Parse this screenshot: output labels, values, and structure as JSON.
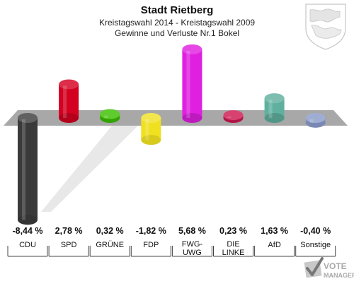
{
  "chart_data": {
    "type": "bar",
    "title": "Stadt Rietberg",
    "subtitle": "Kreistagswahl 2014 - Kreistagswahl 2009",
    "subtitle2": "Gewinne und Verluste Nr.1 Bokel",
    "categories": [
      "CDU",
      "SPD",
      "GRÜNE",
      "FDP",
      "FWG-\nUWG",
      "DIE\nLINKE",
      "AfD",
      "Sonstige"
    ],
    "values": [
      -8.44,
      2.78,
      0.32,
      -1.82,
      5.68,
      0.23,
      1.63,
      -0.4
    ],
    "value_labels": [
      "-8,44 %",
      "2,78 %",
      "0,32 %",
      "-1,82 %",
      "5,68 %",
      "0,23 %",
      "1,63 %",
      "-0,40 %"
    ],
    "colors": [
      "#3a3a3a",
      "#d40020",
      "#3cc000",
      "#f0e020",
      "#e020e0",
      "#d01850",
      "#60b0a0",
      "#8898c8"
    ],
    "ylim": [
      -8.44,
      5.68
    ]
  },
  "branding": {
    "vote_logo_line1": "VOTE",
    "vote_logo_line2": "MANAGER"
  }
}
